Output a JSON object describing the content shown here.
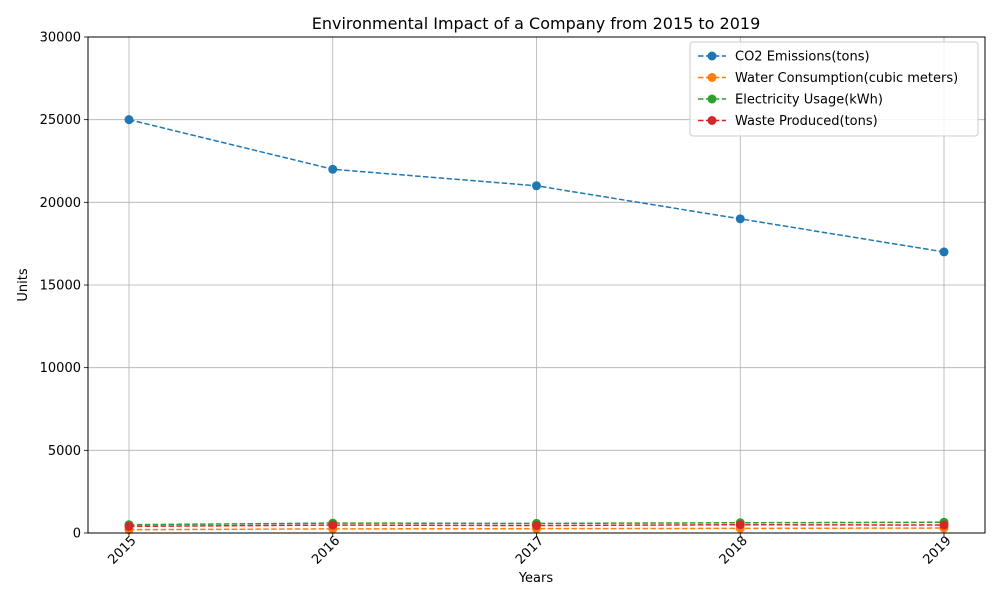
{
  "chart_data": {
    "type": "line",
    "title": "Environmental Impact of a Company from 2015 to 2019",
    "xlabel": "Years",
    "ylabel": "Units",
    "x": [
      "2015",
      "2016",
      "2017",
      "2018",
      "2019"
    ],
    "ylim": [
      0,
      30000
    ],
    "yticks": [
      "0",
      "5000",
      "10000",
      "15000",
      "20000",
      "25000",
      "30000"
    ],
    "grid": true,
    "legend_position": "top-right",
    "series": [
      {
        "name": "CO2 Emissions(tons)",
        "color": "#1f77b4",
        "values": [
          25000,
          22000,
          21000,
          19000,
          17000
        ]
      },
      {
        "name": "Water Consumption(cubic meters)",
        "color": "#ff7f0e",
        "values": [
          200,
          250,
          260,
          280,
          300
        ]
      },
      {
        "name": "Electricity Usage(kWh)",
        "color": "#2ca02c",
        "values": [
          500,
          600,
          580,
          620,
          650
        ]
      },
      {
        "name": "Waste Produced(tons)",
        "color": "#d62728",
        "values": [
          400,
          480,
          450,
          500,
          480
        ]
      }
    ]
  }
}
